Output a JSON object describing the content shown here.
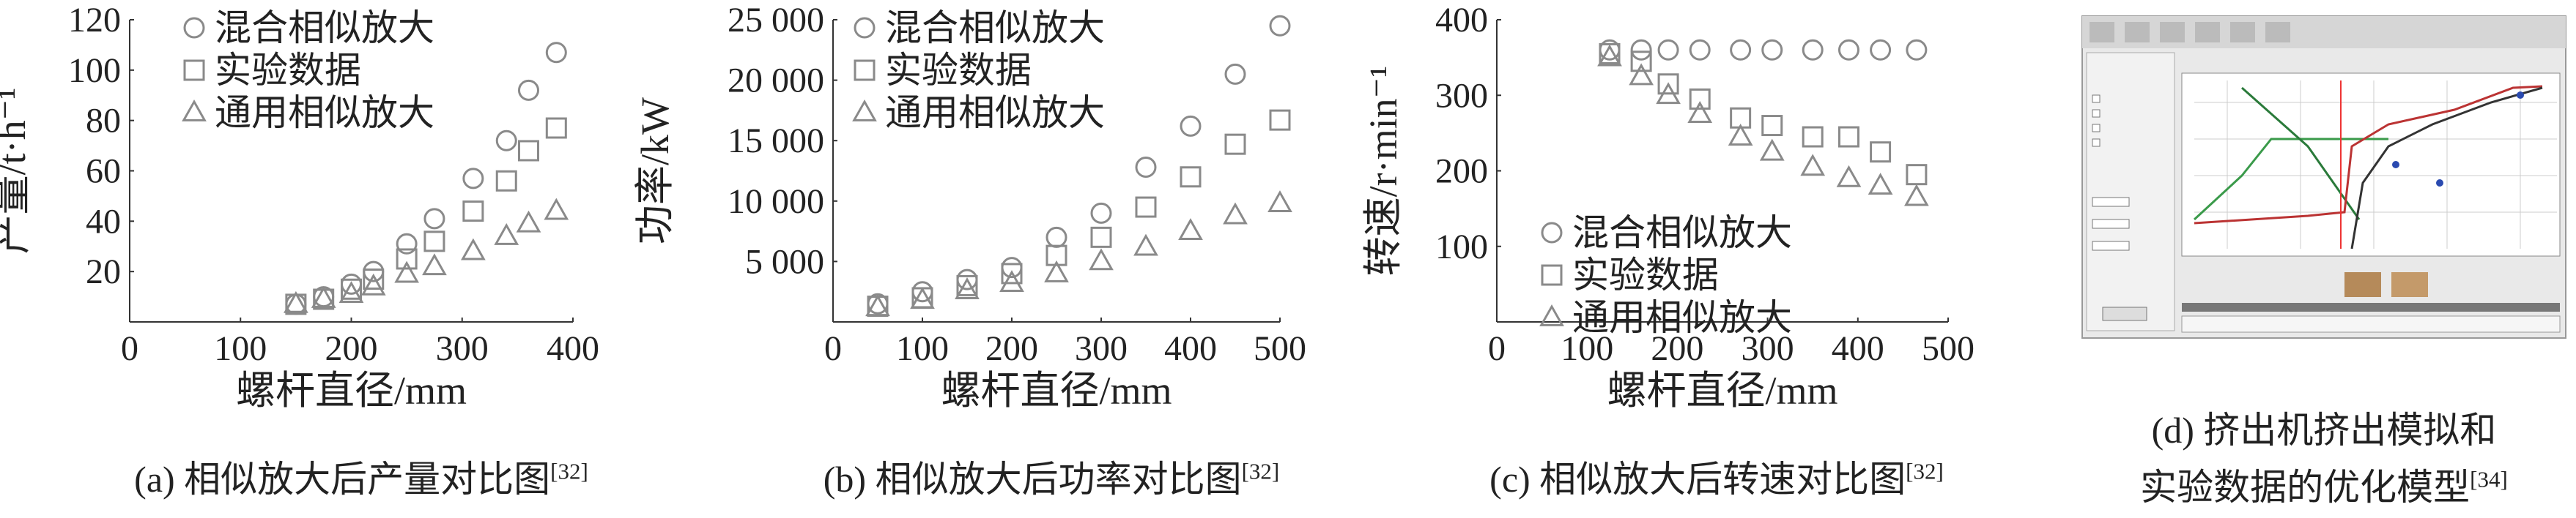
{
  "chart_data": [
    {
      "type": "scatter",
      "caption": "(a) 相似放大后产量对比图",
      "caption_ref": "[32]",
      "xlabel": "螺杆直径/mm",
      "ylabel": "产量/t·h⁻¹",
      "xlim": [
        0,
        400
      ],
      "xticks": [
        0,
        100,
        200,
        300,
        400
      ],
      "ylim": [
        0,
        120
      ],
      "yticks": [
        20,
        40,
        60,
        80,
        100,
        120
      ],
      "legend": "upper-left",
      "x": [
        150,
        175,
        200,
        220,
        250,
        275,
        310,
        340,
        360,
        385
      ],
      "series": [
        {
          "name": "混合相似放大",
          "marker": "circle",
          "color": "#8a8a8a",
          "values": [
            7,
            10,
            15,
            20,
            31,
            41,
            57,
            72,
            92,
            107
          ]
        },
        {
          "name": "实验数据",
          "marker": "square",
          "color": "#8a8a8a",
          "values": [
            7,
            9,
            13,
            17,
            25,
            32,
            44,
            56,
            68,
            77
          ]
        },
        {
          "name": "通用相似放大",
          "marker": "triangle",
          "color": "#8a8a8a",
          "values": [
            7,
            9,
            11,
            14,
            19,
            22,
            28,
            34,
            39,
            44
          ]
        }
      ]
    },
    {
      "type": "scatter",
      "caption": "(b) 相似放大后功率对比图",
      "caption_ref": "[32]",
      "xlabel": "螺杆直径/mm",
      "ylabel": "功率/kW",
      "xlim": [
        0,
        500
      ],
      "xticks": [
        0,
        100,
        200,
        300,
        400,
        500
      ],
      "ylim": [
        0,
        25000
      ],
      "yticks": [
        {
          "value": 5000,
          "label": "5 000"
        },
        {
          "value": 10000,
          "label": "10 000"
        },
        {
          "value": 15000,
          "label": "15 000"
        },
        {
          "value": 20000,
          "label": "20 000"
        },
        {
          "value": 25000,
          "label": "25 000"
        }
      ],
      "legend": "upper-left",
      "x": [
        50,
        100,
        150,
        200,
        250,
        300,
        350,
        400,
        450,
        500
      ],
      "series": [
        {
          "name": "混合相似放大",
          "marker": "circle",
          "color": "#8a8a8a",
          "values": [
            1500,
            2500,
            3500,
            4500,
            7000,
            9000,
            12800,
            16200,
            20500,
            24500
          ]
        },
        {
          "name": "实验数据",
          "marker": "square",
          "color": "#8a8a8a",
          "values": [
            1300,
            2000,
            3000,
            4000,
            5500,
            7000,
            9500,
            12000,
            14700,
            16700
          ]
        },
        {
          "name": "通用相似放大",
          "marker": "triangle",
          "color": "#8a8a8a",
          "values": [
            1200,
            1800,
            2600,
            3200,
            4000,
            5000,
            6200,
            7500,
            8800,
            9800
          ]
        }
      ]
    },
    {
      "type": "scatter",
      "caption": "(c) 相似放大后转速对比图",
      "caption_ref": "[32]",
      "xlabel": "螺杆直径/mm",
      "ylabel": "转速/r·min⁻¹",
      "xlim": [
        0,
        500
      ],
      "xticks": [
        0,
        100,
        200,
        300,
        400,
        500
      ],
      "ylim": [
        0,
        400
      ],
      "yticks": [
        100,
        200,
        300,
        400
      ],
      "legend": "lower-left",
      "x": [
        125,
        160,
        190,
        225,
        270,
        305,
        350,
        390,
        425,
        465
      ],
      "series": [
        {
          "name": "混合相似放大",
          "marker": "circle",
          "color": "#8a8a8a",
          "values": [
            360,
            360,
            360,
            360,
            360,
            360,
            360,
            360,
            360,
            360
          ]
        },
        {
          "name": "实验数据",
          "marker": "square",
          "color": "#8a8a8a",
          "values": [
            355,
            345,
            315,
            295,
            270,
            260,
            245,
            245,
            225,
            195
          ]
        },
        {
          "name": "通用相似放大",
          "marker": "triangle",
          "color": "#8a8a8a",
          "values": [
            350,
            325,
            300,
            275,
            245,
            225,
            205,
            190,
            180,
            165
          ]
        }
      ]
    }
  ],
  "panel_d": {
    "caption_lines": [
      "(d) 挤出机挤出模拟和",
      "实验数据的优化模型"
    ],
    "caption_ref": "[34]"
  }
}
